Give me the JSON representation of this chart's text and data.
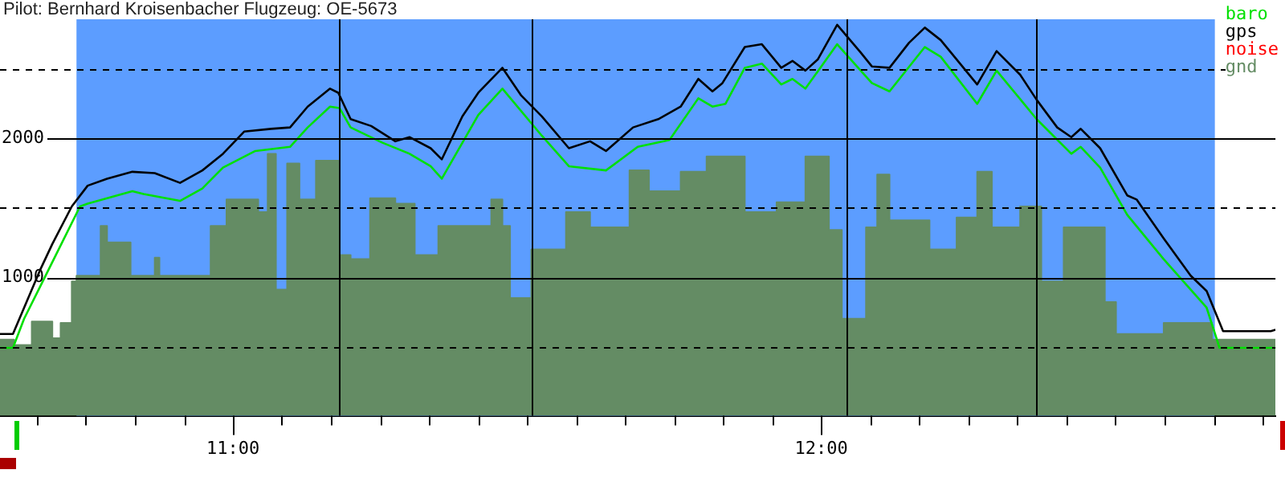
{
  "chart_data": {
    "type": "line",
    "title": "Pilot: Bernhard Kroisenbacher Flugzeug: OE-5673",
    "xlim": [
      10.604,
      12.772
    ],
    "xticks": [
      {
        "value": 10.667,
        "label": null
      },
      {
        "value": 10.75,
        "label": null
      },
      {
        "value": 10.833,
        "label": null
      },
      {
        "value": 10.917,
        "label": null
      },
      {
        "value": 11,
        "label": "11:00"
      },
      {
        "value": 11.083,
        "label": null
      },
      {
        "value": 11.167,
        "label": null
      },
      {
        "value": 11.25,
        "label": null
      },
      {
        "value": 11.333,
        "label": null
      },
      {
        "value": 11.417,
        "label": null
      },
      {
        "value": 11.5,
        "label": null
      },
      {
        "value": 11.583,
        "label": null
      },
      {
        "value": 11.667,
        "label": null
      },
      {
        "value": 11.75,
        "label": null
      },
      {
        "value": 11.833,
        "label": null
      },
      {
        "value": 11.917,
        "label": null
      },
      {
        "value": 12,
        "label": "12:00"
      },
      {
        "value": 12.083,
        "label": null
      },
      {
        "value": 12.167,
        "label": null
      },
      {
        "value": 12.25,
        "label": null
      },
      {
        "value": 12.333,
        "label": null
      },
      {
        "value": 12.417,
        "label": null
      },
      {
        "value": 12.5,
        "label": null
      },
      {
        "value": 12.583,
        "label": null
      },
      {
        "value": 12.667,
        "label": null
      },
      {
        "value": 12.75,
        "label": null
      }
    ],
    "ylim": [
      0,
      2860
    ],
    "yticks": [
      {
        "value": 500,
        "label": null
      },
      1000,
      {
        "value": 1500,
        "label": null
      },
      2000,
      {
        "value": 2500,
        "label": null
      }
    ],
    "grid": "y",
    "legend": "top right",
    "bands": [
      {
        "axis": "x",
        "from": 10.734,
        "to": 12.669,
        "color": "#5c9dff"
      }
    ],
    "ref_lines": [
      {
        "axis": "x",
        "value": 11.179,
        "color": "#000000"
      },
      {
        "axis": "x",
        "value": 11.507,
        "color": "#000000"
      },
      {
        "axis": "x",
        "value": 12.043,
        "color": "#000000"
      },
      {
        "axis": "x",
        "value": 12.366,
        "color": "#000000"
      }
    ],
    "series": [
      {
        "name": "baro",
        "type": "line",
        "color": "#00e000",
        "x": [
          10.604,
          10.626,
          10.645,
          10.672,
          10.699,
          10.74,
          10.753,
          10.829,
          10.848,
          10.91,
          10.948,
          10.983,
          11.038,
          11.097,
          11.127,
          11.165,
          11.181,
          11.2,
          11.254,
          11.3,
          11.336,
          11.355,
          11.417,
          11.458,
          11.525,
          11.571,
          11.634,
          11.688,
          11.742,
          11.791,
          11.815,
          11.837,
          11.87,
          11.899,
          11.932,
          11.951,
          11.973,
          12.027,
          12.067,
          12.086,
          12.116,
          12.176,
          12.203,
          12.265,
          12.298,
          12.366,
          12.425,
          12.441,
          12.474,
          12.52,
          12.582,
          12.655,
          12.677,
          12.772
        ],
        "values": [
          490,
          490,
          700,
          930,
          1160,
          1510,
          1530,
          1620,
          1600,
          1550,
          1640,
          1790,
          1910,
          1940,
          2080,
          2230,
          2220,
          2080,
          1970,
          1890,
          1800,
          1710,
          2170,
          2360,
          2020,
          1800,
          1770,
          1940,
          1990,
          2290,
          2230,
          2250,
          2510,
          2540,
          2390,
          2430,
          2360,
          2680,
          2490,
          2400,
          2340,
          2660,
          2590,
          2250,
          2490,
          2140,
          1890,
          1940,
          1790,
          1450,
          1130,
          780,
          490,
          490
        ]
      },
      {
        "name": "gps",
        "type": "line",
        "color": "#000000",
        "x": [
          10.604,
          10.626,
          10.645,
          10.672,
          10.693,
          10.726,
          10.753,
          10.786,
          10.829,
          10.867,
          10.91,
          10.948,
          10.983,
          11.019,
          11.065,
          11.097,
          11.127,
          11.165,
          11.179,
          11.2,
          11.235,
          11.276,
          11.3,
          11.336,
          11.355,
          11.39,
          11.417,
          11.458,
          11.49,
          11.525,
          11.571,
          11.607,
          11.634,
          11.68,
          11.723,
          11.761,
          11.791,
          11.815,
          11.832,
          11.87,
          11.899,
          11.932,
          11.951,
          11.973,
          11.994,
          12.027,
          12.067,
          12.086,
          12.116,
          12.149,
          12.176,
          12.203,
          12.265,
          12.298,
          12.338,
          12.366,
          12.401,
          12.425,
          12.441,
          12.474,
          12.52,
          12.536,
          12.582,
          12.628,
          12.655,
          12.683,
          12.764,
          12.772
        ],
        "values": [
          590,
          590,
          780,
          1050,
          1240,
          1510,
          1660,
          1710,
          1760,
          1750,
          1680,
          1770,
          1890,
          2050,
          2070,
          2080,
          2230,
          2360,
          2330,
          2140,
          2090,
          1980,
          2010,
          1930,
          1850,
          2160,
          2330,
          2510,
          2310,
          2160,
          1930,
          1980,
          1910,
          2080,
          2140,
          2230,
          2430,
          2340,
          2400,
          2660,
          2680,
          2510,
          2560,
          2490,
          2570,
          2820,
          2620,
          2520,
          2510,
          2690,
          2800,
          2710,
          2390,
          2630,
          2460,
          2280,
          2080,
          2010,
          2070,
          1930,
          1590,
          1560,
          1280,
          1010,
          900,
          610,
          610,
          620
        ]
      },
      {
        "name": "noise",
        "type": "line",
        "color": "#ff0000"
      },
      {
        "name": "gnd",
        "type": "area",
        "color": "#648c64",
        "x": [
          10.604,
          10.628,
          10.628,
          10.658,
          10.658,
          10.693,
          10.693,
          10.707,
          10.707,
          10.726,
          10.726,
          10.734,
          10.734,
          10.775,
          10.775,
          10.786,
          10.786,
          10.826,
          10.826,
          10.867,
          10.867,
          10.875,
          10.875,
          10.962,
          10.962,
          10.989,
          10.989,
          11.043,
          11.043,
          11.059,
          11.059,
          11.073,
          11.073,
          11.092,
          11.092,
          11.113,
          11.113,
          11.141,
          11.141,
          11.179,
          11.179,
          11.2,
          11.2,
          11.233,
          11.233,
          11.276,
          11.276,
          11.309,
          11.309,
          11.349,
          11.349,
          11.439,
          11.439,
          11.458,
          11.458,
          11.471,
          11.471,
          11.507,
          11.507,
          11.566,
          11.566,
          11.607,
          11.607,
          11.674,
          11.674,
          11.707,
          11.707,
          11.761,
          11.761,
          11.805,
          11.805,
          11.87,
          11.87,
          11.924,
          11.924,
          11.973,
          11.973,
          12.013,
          12.013,
          12.035,
          12.035,
          12.076,
          12.076,
          12.095,
          12.095,
          12.116,
          12.116,
          12.184,
          12.184,
          12.23,
          12.23,
          12.265,
          12.265,
          12.29,
          12.29,
          12.338,
          12.338,
          12.374,
          12.374,
          12.412,
          12.412,
          12.482,
          12.482,
          12.501,
          12.501,
          12.582,
          12.582,
          12.664,
          12.664,
          12.772
        ],
        "values": [
          550,
          550,
          510,
          510,
          680,
          680,
          560,
          560,
          670,
          670,
          970,
          970,
          1010,
          1010,
          1370,
          1370,
          1250,
          1250,
          1010,
          1010,
          1140,
          1140,
          1010,
          1010,
          1370,
          1370,
          1560,
          1560,
          1470,
          1470,
          1890,
          1890,
          910,
          910,
          1820,
          1820,
          1560,
          1560,
          1840,
          1840,
          1160,
          1160,
          1130,
          1130,
          1570,
          1570,
          1530,
          1530,
          1160,
          1160,
          1370,
          1370,
          1560,
          1560,
          1370,
          1370,
          850,
          850,
          1200,
          1200,
          1470,
          1470,
          1360,
          1360,
          1770,
          1770,
          1620,
          1620,
          1760,
          1760,
          1870,
          1870,
          1470,
          1470,
          1540,
          1540,
          1870,
          1870,
          1340,
          1340,
          700,
          700,
          1360,
          1360,
          1740,
          1740,
          1410,
          1410,
          1200,
          1200,
          1430,
          1430,
          1760,
          1760,
          1360,
          1360,
          1510,
          1510,
          970,
          970,
          1360,
          1360,
          820,
          820,
          590,
          590,
          670,
          670,
          550,
          550
        ]
      }
    ]
  }
}
